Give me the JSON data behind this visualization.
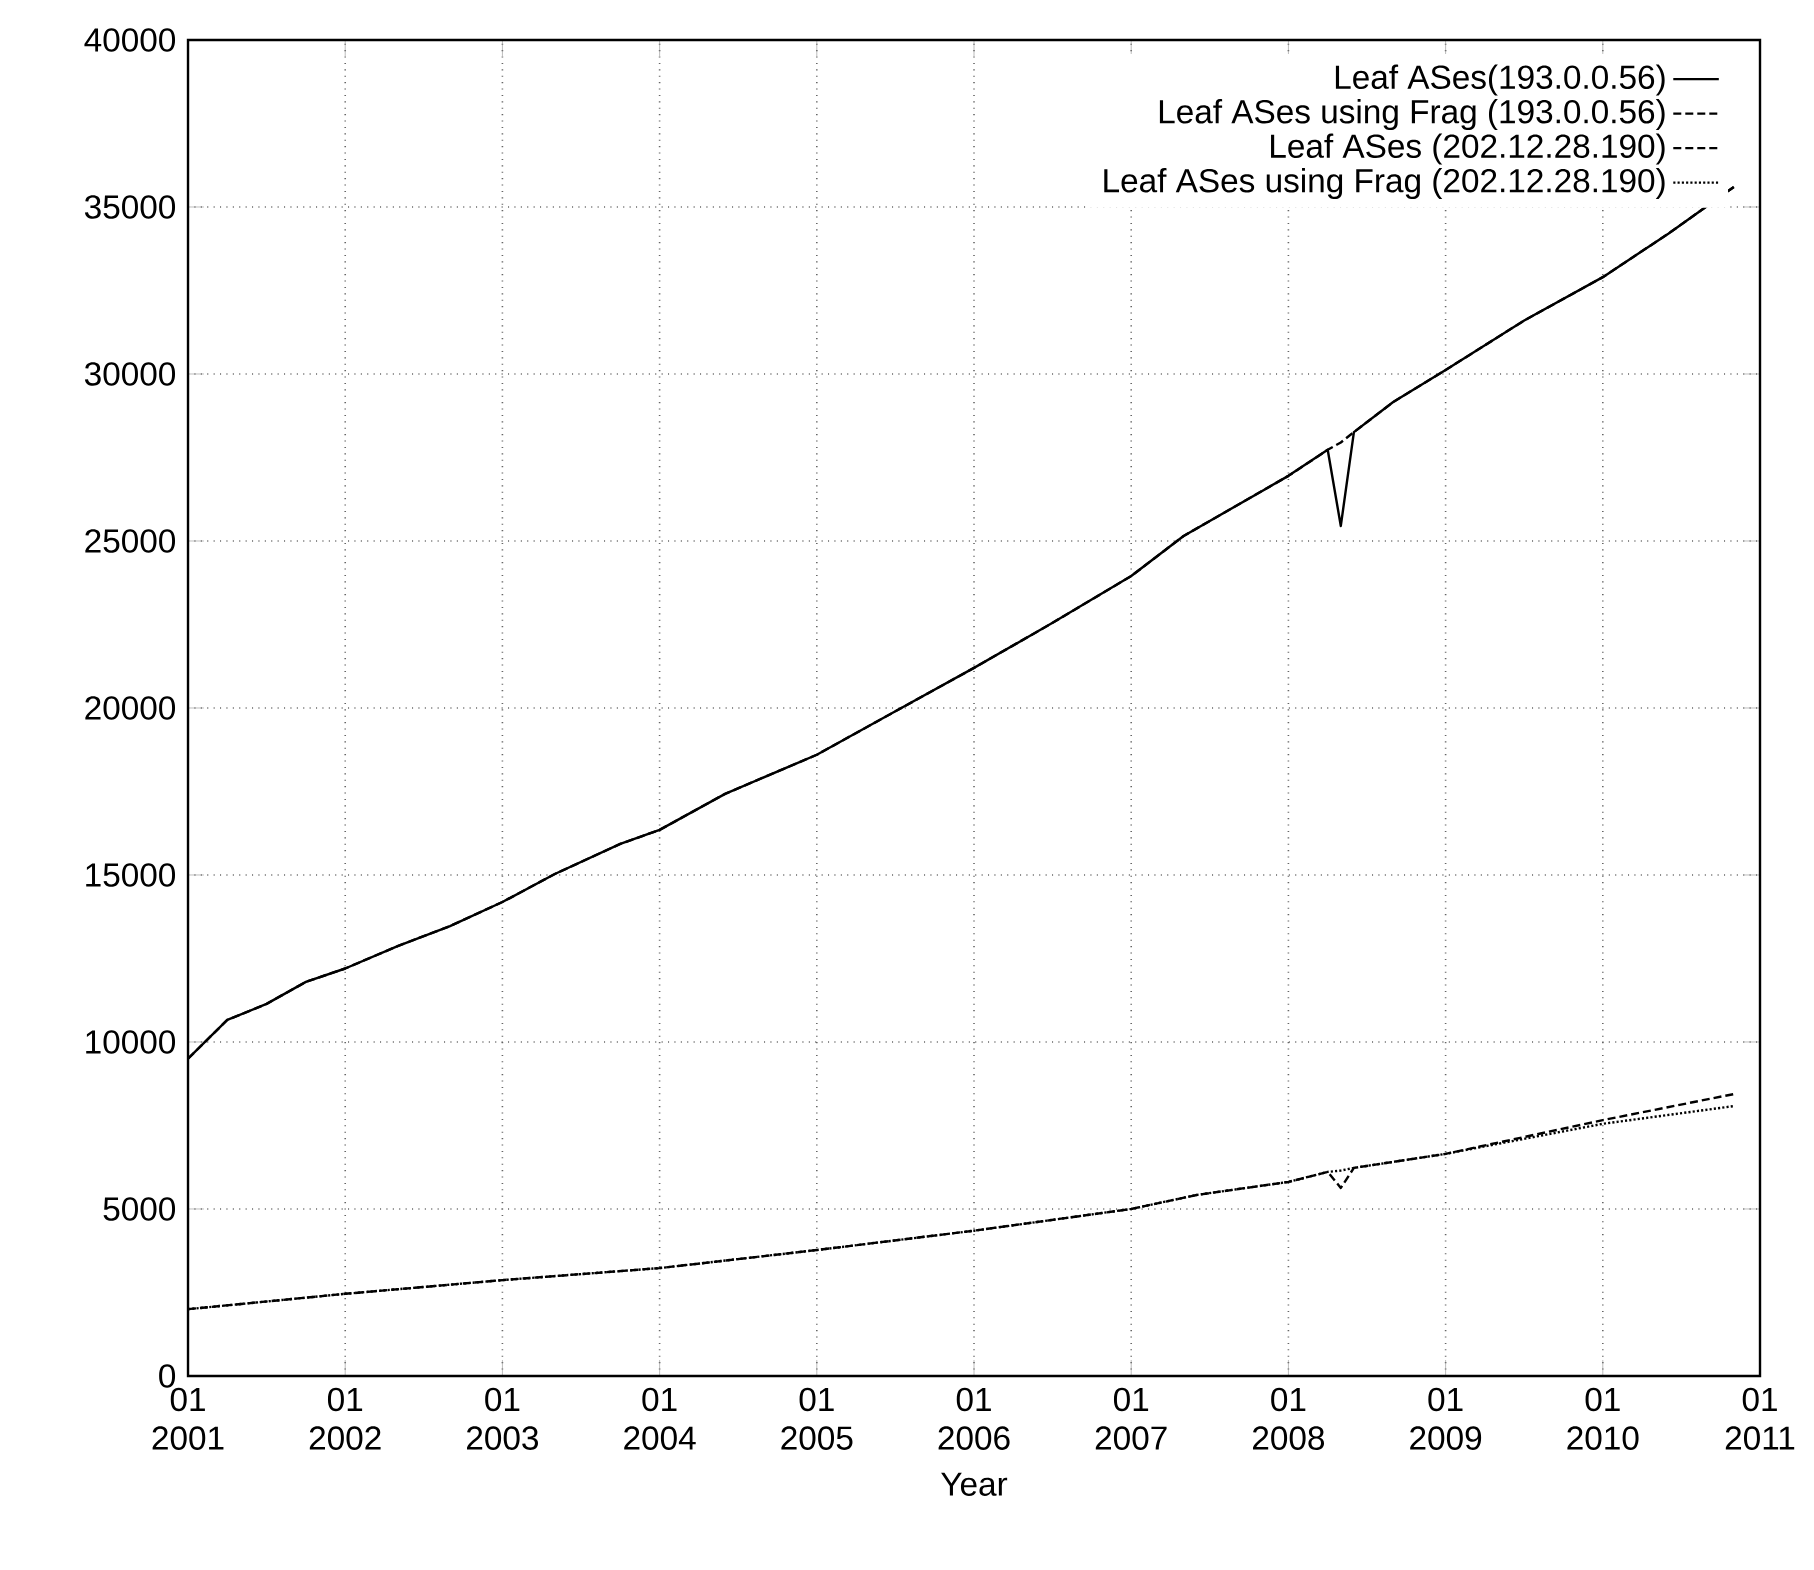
{
  "chart_data": {
    "type": "line",
    "xlabel": "Year",
    "xlim": [
      "2001-01",
      "2011-01"
    ],
    "xticks": [
      {
        "value": "2001-01",
        "label": "01 2001"
      },
      {
        "value": "2002-01",
        "label": "01 2002"
      },
      {
        "value": "2003-01",
        "label": "01 2003"
      },
      {
        "value": "2004-01",
        "label": "01 2004"
      },
      {
        "value": "2005-01",
        "label": "01 2005"
      },
      {
        "value": "2006-01",
        "label": "01 2006"
      },
      {
        "value": "2007-01",
        "label": "01 2007"
      },
      {
        "value": "2008-01",
        "label": "01 2008"
      },
      {
        "value": "2009-01",
        "label": "01 2009"
      },
      {
        "value": "2010-01",
        "label": "01 2010"
      },
      {
        "value": "2011-01",
        "label": "01 2011"
      }
    ],
    "ylim": [
      0,
      40000
    ],
    "yticks": [
      0,
      5000,
      10000,
      15000,
      20000,
      25000,
      30000,
      35000,
      40000
    ],
    "grid": true,
    "legend": "top right",
    "marker": "none",
    "series": [
      {
        "name": "Leaf ASes(193.0.0.56)",
        "color": "#000000",
        "line_style": "solid",
        "x": [
          "2001-01",
          "2001-04",
          "2001-07",
          "2001-10",
          "2002-01",
          "2002-05",
          "2002-09",
          "2003-01",
          "2003-05",
          "2003-10",
          "2004-01",
          "2004-06",
          "2005-01",
          "2005-07",
          "2006-01",
          "2006-07",
          "2007-01",
          "2007-05",
          "2008-01",
          "2008-04",
          "2008-05",
          "2008-06",
          "2008-09",
          "2009-01",
          "2009-07",
          "2010-01",
          "2010-06",
          "2010-11"
        ],
        "values": [
          9500,
          10660,
          11140,
          11800,
          12200,
          12870,
          13470,
          14190,
          15030,
          15930,
          16350,
          17430,
          18600,
          19900,
          21200,
          22550,
          23950,
          25150,
          26950,
          27730,
          25450,
          28260,
          29160,
          30120,
          31600,
          32900,
          34200,
          35600
        ]
      },
      {
        "name": "Leaf ASes using Frag (193.0.0.56)",
        "color": "#000000",
        "line_style": "dashed",
        "x": [
          "2001-01",
          "2001-04",
          "2001-07",
          "2001-10",
          "2002-01",
          "2002-05",
          "2002-09",
          "2003-01",
          "2003-05",
          "2003-10",
          "2004-01",
          "2004-06",
          "2005-01",
          "2005-07",
          "2006-01",
          "2006-07",
          "2007-01",
          "2007-05",
          "2008-01",
          "2008-04",
          "2008-05",
          "2008-06",
          "2008-09",
          "2009-01",
          "2009-07",
          "2010-01",
          "2010-06",
          "2010-11"
        ],
        "values": [
          9500,
          10660,
          11140,
          11800,
          12200,
          12870,
          13470,
          14190,
          15030,
          15930,
          16350,
          17430,
          18600,
          19900,
          21200,
          22550,
          23950,
          25150,
          26950,
          27730,
          27950,
          28260,
          29160,
          30120,
          31600,
          32900,
          34200,
          35600
        ]
      },
      {
        "name": "Leaf ASes (202.12.28.190)",
        "color": "#000000",
        "line_style": "dashed",
        "x": [
          "2001-01",
          "2002-01",
          "2003-01",
          "2004-01",
          "2005-01",
          "2006-01",
          "2007-01",
          "2007-06",
          "2008-01",
          "2008-04",
          "2008-05",
          "2008-06",
          "2009-01",
          "2010-01",
          "2010-11"
        ],
        "values": [
          2000,
          2460,
          2870,
          3230,
          3770,
          4350,
          5000,
          5420,
          5810,
          6110,
          5630,
          6230,
          6650,
          7660,
          8440
        ]
      },
      {
        "name": "Leaf ASes using Frag (202.12.28.190)",
        "color": "#000000",
        "line_style": "dotted",
        "x": [
          "2001-01",
          "2002-01",
          "2003-01",
          "2004-01",
          "2005-01",
          "2006-01",
          "2007-01",
          "2007-06",
          "2008-01",
          "2008-04",
          "2008-05",
          "2008-06",
          "2009-01",
          "2010-01",
          "2010-11"
        ],
        "values": [
          2000,
          2460,
          2870,
          3230,
          3770,
          4350,
          5000,
          5420,
          5810,
          6110,
          6150,
          6230,
          6650,
          7550,
          8080
        ]
      }
    ]
  }
}
